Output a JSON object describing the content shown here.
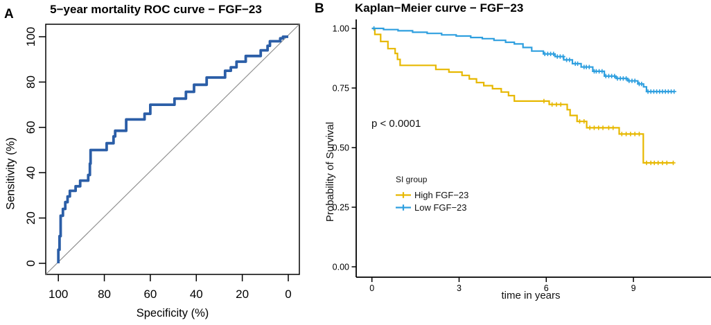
{
  "panels": {
    "a": {
      "label": "A",
      "title": "5−year mortality ROC curve − FGF−23",
      "x_axis": {
        "title": "Specificity (%)",
        "ticks": [
          100,
          80,
          60,
          40,
          20,
          0
        ]
      },
      "y_axis": {
        "title": "Sensitivity (%)",
        "ticks": [
          0,
          20,
          40,
          60,
          80,
          100
        ]
      },
      "colors": {
        "roc_curve": "#2b5ea7",
        "diagonal": "#909090",
        "box": "#000000"
      }
    },
    "b": {
      "label": "B",
      "title": "Kaplan−Meier curve − FGF−23",
      "x_axis": {
        "title": "time in years",
        "ticks": [
          0,
          3,
          6,
          9
        ]
      },
      "y_axis": {
        "title": "Probability of Survival",
        "ticks": [
          "0.00",
          "0.25",
          "0.50",
          "0.75",
          "1.00"
        ]
      },
      "p_value": "p < 0.0001",
      "legend": {
        "title": "SI group",
        "items": [
          {
            "label": "High FGF−23",
            "color": "#E7B800"
          },
          {
            "label": "Low FGF−23",
            "color": "#2E9FDF"
          }
        ]
      }
    }
  },
  "chart_data": [
    {
      "type": "line",
      "subtype": "roc",
      "title": "5−year mortality ROC curve − FGF−23",
      "xlabel": "Specificity (%)",
      "ylabel": "Sensitivity (%)",
      "xlim": [
        100,
        0
      ],
      "ylim": [
        0,
        100
      ],
      "x_reversed": true,
      "grid": false,
      "series": [
        {
          "name": "ROC curve FGF-23",
          "color": "#2b5ea7",
          "step_points_spec_sens": [
            [
              100,
              0
            ],
            [
              100,
              6
            ],
            [
              99.5,
              6
            ],
            [
              99.5,
              12
            ],
            [
              99,
              12
            ],
            [
              99,
              21
            ],
            [
              98,
              21
            ],
            [
              98,
              24
            ],
            [
              97,
              24
            ],
            [
              97,
              27
            ],
            [
              96,
              27
            ],
            [
              96,
              29.5
            ],
            [
              95,
              29.5
            ],
            [
              95,
              32
            ],
            [
              92.5,
              32
            ],
            [
              92.5,
              34
            ],
            [
              90.5,
              34
            ],
            [
              90.5,
              36.5
            ],
            [
              87,
              36.5
            ],
            [
              87,
              39
            ],
            [
              86.3,
              39
            ],
            [
              86.3,
              44
            ],
            [
              86,
              44
            ],
            [
              86,
              50
            ],
            [
              79,
              50
            ],
            [
              79,
              53
            ],
            [
              76,
              53
            ],
            [
              76,
              56
            ],
            [
              75.3,
              56
            ],
            [
              75.3,
              58.5
            ],
            [
              70.5,
              58.5
            ],
            [
              70.5,
              63.5
            ],
            [
              62.5,
              63.5
            ],
            [
              62.5,
              66
            ],
            [
              60,
              66
            ],
            [
              60,
              70
            ],
            [
              49.5,
              70
            ],
            [
              49.5,
              72.7
            ],
            [
              44.5,
              72.7
            ],
            [
              44.5,
              75.7
            ],
            [
              41,
              75.7
            ],
            [
              41,
              78.8
            ],
            [
              35.5,
              78.8
            ],
            [
              35.5,
              82
            ],
            [
              27.5,
              82
            ],
            [
              27.5,
              85
            ],
            [
              25,
              85
            ],
            [
              25,
              86.5
            ],
            [
              22.5,
              86.5
            ],
            [
              22.5,
              89
            ],
            [
              18.5,
              89
            ],
            [
              18.5,
              91.5
            ],
            [
              12,
              91.5
            ],
            [
              12,
              94
            ],
            [
              9,
              94
            ],
            [
              9,
              96
            ],
            [
              8,
              96
            ],
            [
              8,
              98
            ],
            [
              3.5,
              98
            ],
            [
              3.5,
              99.3
            ],
            [
              2.3,
              99.3
            ],
            [
              2.3,
              100
            ],
            [
              0,
              100
            ]
          ]
        },
        {
          "name": "chance diagonal",
          "color": "#909090",
          "points_spec_sens": [
            [
              100,
              0
            ],
            [
              0,
              100
            ]
          ]
        }
      ]
    },
    {
      "type": "line",
      "subtype": "kaplan-meier",
      "title": "Kaplan−Meier curve − FGF−23",
      "xlabel": "time in years",
      "ylabel": "Probability of Survival",
      "xlim": [
        0,
        10.6
      ],
      "ylim": [
        0,
        1.0
      ],
      "grid": false,
      "annotation": "p < 0.0001",
      "legend_title": "SI group",
      "legend_position": "inside-left",
      "series": [
        {
          "name": "High FGF−23",
          "color": "#E7B800",
          "steps_time_prob": [
            [
              0,
              1.0
            ],
            [
              0.1,
              0.975
            ],
            [
              0.3,
              0.945
            ],
            [
              0.55,
              0.915
            ],
            [
              0.8,
              0.895
            ],
            [
              0.88,
              0.87
            ],
            [
              0.97,
              0.845
            ],
            [
              2.2,
              0.828
            ],
            [
              2.65,
              0.817
            ],
            [
              3.1,
              0.803
            ],
            [
              3.35,
              0.788
            ],
            [
              3.6,
              0.773
            ],
            [
              3.85,
              0.76
            ],
            [
              4.15,
              0.747
            ],
            [
              4.45,
              0.733
            ],
            [
              4.7,
              0.718
            ],
            [
              4.9,
              0.695
            ],
            [
              6.1,
              0.681
            ],
            [
              6.72,
              0.659
            ],
            [
              6.82,
              0.635
            ],
            [
              7.06,
              0.61
            ],
            [
              7.39,
              0.583
            ],
            [
              8.51,
              0.557
            ],
            [
              9.34,
              0.436
            ],
            [
              10.37,
              0.436
            ]
          ],
          "censor_times": [
            5.92,
            6.2,
            6.35,
            6.5,
            7.15,
            7.3,
            7.5,
            7.65,
            7.8,
            7.95,
            8.15,
            8.3,
            8.6,
            8.75,
            8.9,
            9.05,
            9.2,
            9.45,
            9.6,
            9.72,
            9.85,
            10.0,
            10.15,
            10.37
          ]
        },
        {
          "name": "Low FGF−23",
          "color": "#2E9FDF",
          "steps_time_prob": [
            [
              0,
              1.0
            ],
            [
              0.4,
              0.995
            ],
            [
              0.9,
              0.99
            ],
            [
              1.4,
              0.984
            ],
            [
              1.9,
              0.979
            ],
            [
              2.4,
              0.973
            ],
            [
              2.9,
              0.968
            ],
            [
              3.4,
              0.962
            ],
            [
              3.8,
              0.957
            ],
            [
              4.2,
              0.95
            ],
            [
              4.6,
              0.942
            ],
            [
              4.9,
              0.935
            ],
            [
              5.2,
              0.92
            ],
            [
              5.5,
              0.905
            ],
            [
              5.9,
              0.893
            ],
            [
              6.3,
              0.882
            ],
            [
              6.6,
              0.868
            ],
            [
              6.9,
              0.852
            ],
            [
              7.2,
              0.838
            ],
            [
              7.6,
              0.82
            ],
            [
              8.0,
              0.8
            ],
            [
              8.4,
              0.79
            ],
            [
              8.8,
              0.78
            ],
            [
              9.15,
              0.767
            ],
            [
              9.35,
              0.755
            ],
            [
              9.45,
              0.735
            ],
            [
              10.4,
              0.735
            ]
          ],
          "censor_times": [
            0.07,
            5.95,
            6.05,
            6.15,
            6.25,
            6.38,
            6.48,
            6.58,
            6.7,
            6.8,
            7.0,
            7.08,
            7.3,
            7.38,
            7.48,
            7.65,
            7.72,
            7.82,
            7.92,
            8.05,
            8.15,
            8.25,
            8.35,
            8.45,
            8.55,
            8.65,
            8.75,
            8.85,
            8.95,
            9.05,
            9.2,
            9.28,
            9.5,
            9.6,
            9.7,
            9.8,
            9.9,
            10.0,
            10.1,
            10.2,
            10.3,
            10.4
          ]
        }
      ]
    }
  ]
}
